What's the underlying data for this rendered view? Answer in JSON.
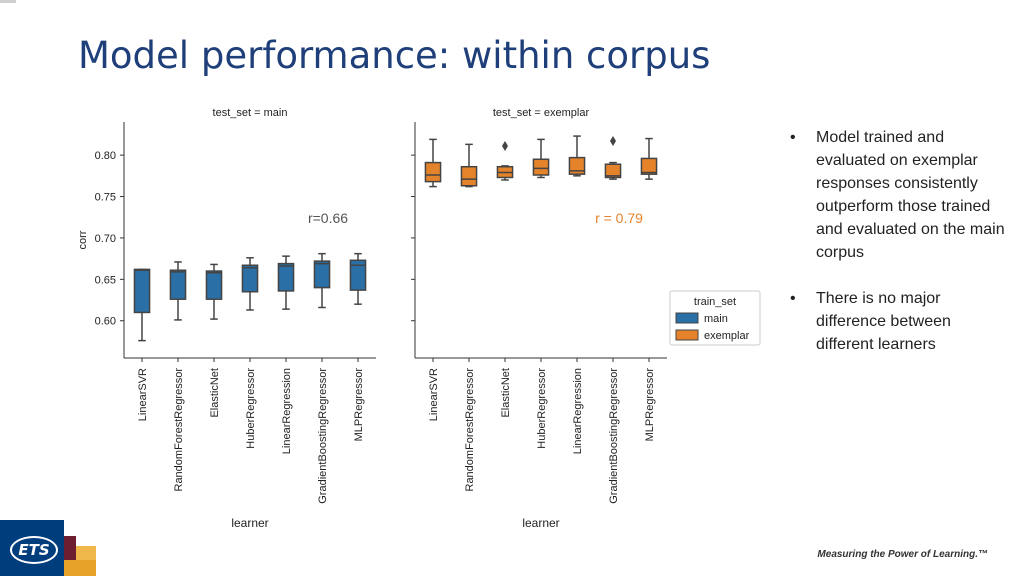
{
  "slide": {
    "title": "Model performance: within corpus",
    "bullets": [
      "Model trained and evaluated on exemplar responses consistently outperform those trained and evaluated on the main corpus",
      "There is no major difference between different learners"
    ],
    "logo_text": "ETS",
    "tagline": "Measuring the Power of Learning.™"
  },
  "chart_data": {
    "type": "box",
    "ylabel": "corr",
    "xlabel": "learner",
    "ylim": [
      0.555,
      0.84
    ],
    "yticks": [
      "0.80",
      "0.75",
      "0.70",
      "0.65",
      "0.60"
    ],
    "categories": [
      "LinearSVR",
      "RandomForestRegressor",
      "ElasticNet",
      "HuberRegressor",
      "LinearRegression",
      "GradientBoostingRegressor",
      "MLPRegressor"
    ],
    "legend": {
      "title": "train_set",
      "placement": "right",
      "items": [
        {
          "label": "main",
          "color": "#2a6fa5"
        },
        {
          "label": "exemplar",
          "color": "#e5832b"
        }
      ]
    },
    "panels": [
      {
        "title": "test_set = main",
        "annotation": "r=0.66",
        "annotation_color": "#555555",
        "color": "#2a6fa5",
        "boxes": [
          {
            "min": 0.576,
            "q1": 0.61,
            "median": 0.661,
            "q3": 0.662,
            "max": 0.662
          },
          {
            "min": 0.601,
            "q1": 0.626,
            "median": 0.659,
            "q3": 0.661,
            "max": 0.671
          },
          {
            "min": 0.602,
            "q1": 0.626,
            "median": 0.658,
            "q3": 0.66,
            "max": 0.668
          },
          {
            "min": 0.613,
            "q1": 0.635,
            "median": 0.664,
            "q3": 0.667,
            "max": 0.676
          },
          {
            "min": 0.614,
            "q1": 0.636,
            "median": 0.666,
            "q3": 0.669,
            "max": 0.678
          },
          {
            "min": 0.616,
            "q1": 0.64,
            "median": 0.669,
            "q3": 0.672,
            "max": 0.681
          },
          {
            "min": 0.62,
            "q1": 0.637,
            "median": 0.667,
            "q3": 0.673,
            "max": 0.681
          }
        ],
        "outliers": []
      },
      {
        "title": "test_set = exemplar",
        "annotation": "r = 0.79",
        "annotation_color": "#e5832b",
        "color": "#e5832b",
        "boxes": [
          {
            "min": 0.762,
            "q1": 0.768,
            "median": 0.776,
            "q3": 0.791,
            "max": 0.819
          },
          {
            "min": 0.762,
            "q1": 0.763,
            "median": 0.771,
            "q3": 0.786,
            "max": 0.813
          },
          {
            "min": 0.77,
            "q1": 0.773,
            "median": 0.779,
            "q3": 0.786,
            "max": 0.787
          },
          {
            "min": 0.773,
            "q1": 0.776,
            "median": 0.784,
            "q3": 0.795,
            "max": 0.819
          },
          {
            "min": 0.775,
            "q1": 0.777,
            "median": 0.781,
            "q3": 0.797,
            "max": 0.823
          },
          {
            "min": 0.771,
            "q1": 0.773,
            "median": 0.775,
            "q3": 0.789,
            "max": 0.791
          },
          {
            "min": 0.771,
            "q1": 0.777,
            "median": 0.779,
            "q3": 0.796,
            "max": 0.82
          }
        ],
        "outliers": [
          {
            "category": "ElasticNet",
            "value": 0.811
          },
          {
            "category": "GradientBoostingRegressor",
            "value": 0.817
          }
        ]
      }
    ]
  }
}
